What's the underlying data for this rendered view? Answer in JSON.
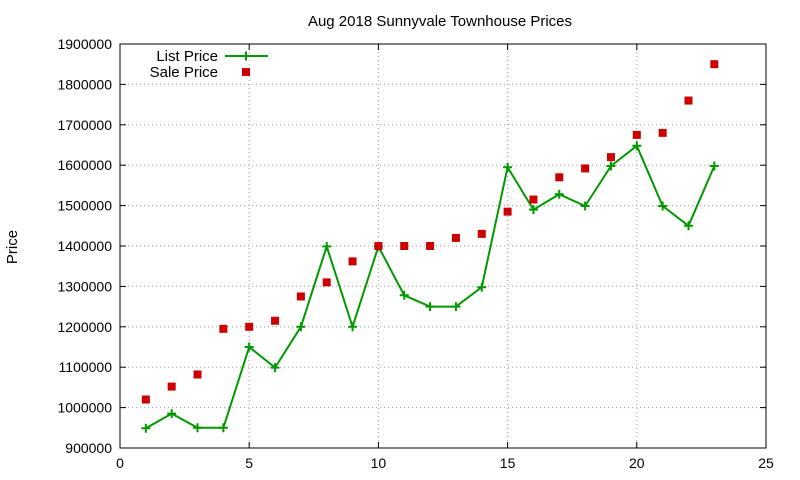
{
  "chart_data": {
    "type": "line",
    "title": "Aug 2018 Sunnyvale Townhouse Prices",
    "xlabel": "",
    "ylabel": "Price",
    "xlim": [
      0,
      25
    ],
    "ylim": [
      900000,
      1900000
    ],
    "x_ticks": [
      "0",
      "5",
      "10",
      "15",
      "20",
      "25"
    ],
    "y_ticks": [
      "900000",
      "1000000",
      "1100000",
      "1200000",
      "1300000",
      "1400000",
      "1500000",
      "1600000",
      "1700000",
      "1800000",
      "1900000"
    ],
    "grid": true,
    "legend_position": "top-left",
    "series": [
      {
        "name": "List Price",
        "style": "linespoints",
        "marker": "plus",
        "color": "#009900",
        "x": [
          1,
          2,
          3,
          4,
          5,
          6,
          7,
          8,
          9,
          10,
          11,
          12,
          13,
          14,
          15,
          16,
          17,
          18,
          19,
          20,
          21,
          22,
          23
        ],
        "y": [
          949000,
          985000,
          950000,
          950000,
          1150000,
          1099000,
          1200000,
          1399000,
          1200000,
          1399000,
          1278000,
          1250000,
          1250000,
          1298000,
          1595000,
          1490000,
          1528000,
          1499000,
          1598000,
          1648000,
          1499000,
          1450000,
          1598000
        ]
      },
      {
        "name": "Sale Price",
        "style": "points",
        "marker": "square",
        "color": "#cc0000",
        "x": [
          1,
          2,
          3,
          4,
          5,
          6,
          7,
          8,
          9,
          10,
          11,
          12,
          13,
          14,
          15,
          16,
          17,
          18,
          19,
          20,
          21,
          22,
          23
        ],
        "y": [
          1020000,
          1052000,
          1082000,
          1195000,
          1200000,
          1215000,
          1275000,
          1310000,
          1362000,
          1400000,
          1400000,
          1400000,
          1420000,
          1430000,
          1485000,
          1515000,
          1570000,
          1592000,
          1620000,
          1675000,
          1680000,
          1760000,
          1850000
        ]
      }
    ]
  }
}
